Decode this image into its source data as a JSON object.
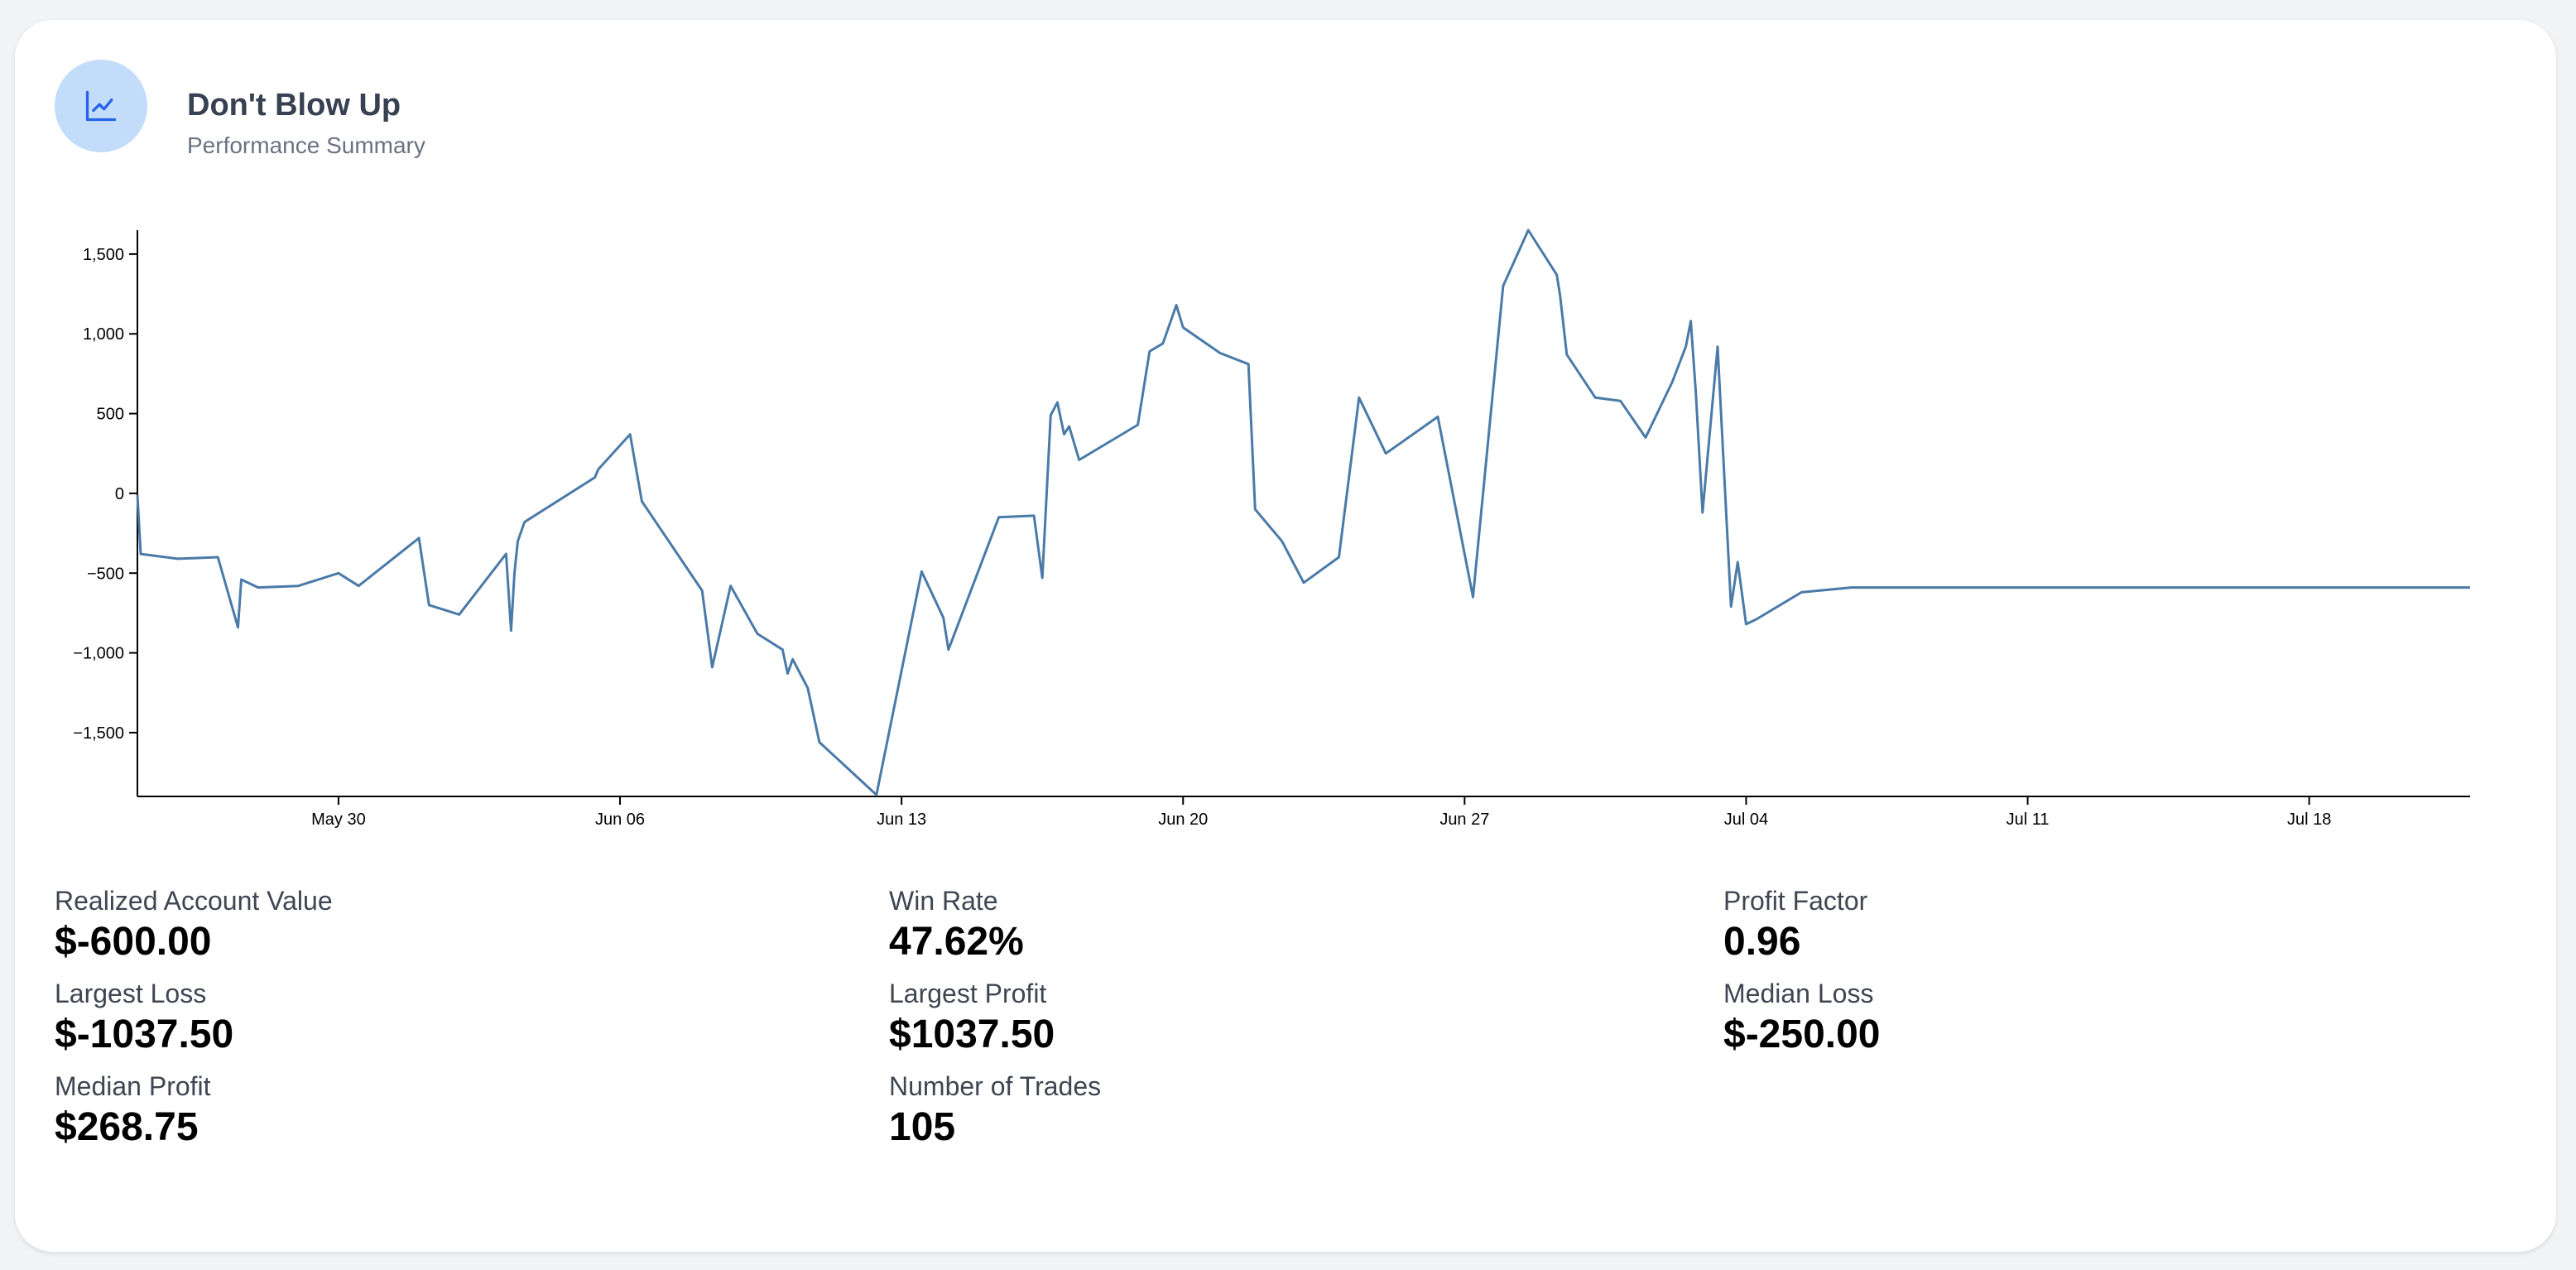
{
  "header": {
    "title": "Don't Blow Up",
    "subtitle": "Performance Summary",
    "icon": "line-chart-icon"
  },
  "colors": {
    "line": "#4a7aa8",
    "icon_bg": "#c3dcfa",
    "icon_fg": "#2563eb"
  },
  "chart_data": {
    "type": "line",
    "title": "",
    "xlabel": "",
    "ylabel": "",
    "ylim": [
      -1900,
      1650
    ],
    "xlim": [
      "2023-05-25",
      "2023-07-22"
    ],
    "yticks": [
      -1500,
      -1000,
      -500,
      0,
      500,
      1000,
      1500
    ],
    "ytick_labels": [
      "−1,500",
      "−1,000",
      "−500",
      "0",
      "500",
      "1,000",
      "1,500"
    ],
    "xticks": [
      "2023-05-30",
      "2023-06-06",
      "2023-06-13",
      "2023-06-20",
      "2023-06-27",
      "2023-07-04",
      "2023-07-11",
      "2023-07-18"
    ],
    "xtick_labels": [
      "May 30",
      "Jun 06",
      "Jun 13",
      "Jun 20",
      "Jun 27",
      "Jul 04",
      "Jul 11",
      "Jul 18"
    ],
    "grid": false,
    "series": [
      {
        "x": [
          "2023-05-25 00:00",
          "2023-05-25 02:00",
          "2023-05-26 00:00",
          "2023-05-27 00:00",
          "2023-05-27 12:00",
          "2023-05-27 14:00",
          "2023-05-28 00:00",
          "2023-05-29 00:00",
          "2023-05-30 00:00",
          "2023-05-30 12:00",
          "2023-06-01 00:00",
          "2023-06-01 06:00",
          "2023-06-02 00:00",
          "2023-06-03 04:00",
          "2023-06-03 07:00",
          "2023-06-03 09:00",
          "2023-06-03 11:00",
          "2023-06-03 15:00",
          "2023-06-05 09:00",
          "2023-06-05 11:00",
          "2023-06-06 06:00",
          "2023-06-06 13:00",
          "2023-06-08 01:00",
          "2023-06-08 07:00",
          "2023-06-08 18:00",
          "2023-06-09 10:00",
          "2023-06-10 01:00",
          "2023-06-10 04:00",
          "2023-06-10 07:00",
          "2023-06-10 16:00",
          "2023-06-10 23:00",
          "2023-06-12 09:00",
          "2023-06-13 12:00",
          "2023-06-14 01:00",
          "2023-06-14 04:00",
          "2023-06-15 10:00",
          "2023-06-16 07:00",
          "2023-06-16 12:00",
          "2023-06-16 17:00",
          "2023-06-16 21:00",
          "2023-06-17 01:00",
          "2023-06-17 04:00",
          "2023-06-17 10:00",
          "2023-06-18 21:00",
          "2023-06-19 04:00",
          "2023-06-19 12:00",
          "2023-06-19 20:00",
          "2023-06-20 00:00",
          "2023-06-20 22:00",
          "2023-06-21 15:00",
          "2023-06-21 19:00",
          "2023-06-22 11:00",
          "2023-06-23 00:00",
          "2023-06-23 21:00",
          "2023-06-24 09:00",
          "2023-06-25 01:00",
          "2023-06-26 08:00",
          "2023-06-27 05:00",
          "2023-06-27 23:00",
          "2023-06-28 14:00",
          "2023-06-29 07:00",
          "2023-06-29 09:00",
          "2023-06-29 13:00",
          "2023-06-30 06:00",
          "2023-06-30 21:00",
          "2023-07-01 12:00",
          "2023-07-02 04:00",
          "2023-07-02 12:00",
          "2023-07-02 15:00",
          "2023-07-02 18:00",
          "2023-07-02 22:00",
          "2023-07-03 07:00",
          "2023-07-03 15:00",
          "2023-07-03 19:00",
          "2023-07-04 00:00",
          "2023-07-04 06:00",
          "2023-07-05 09:00",
          "2023-07-06 15:00",
          "2023-07-07 11:00",
          "2023-07-08 14:00",
          "2023-07-09 12:00",
          "2023-07-10 08:00",
          "2023-07-12 14:00",
          "2023-07-12 16:00",
          "2023-07-13 07:00",
          "2023-07-14 02:00",
          "2023-07-14 07:00",
          "2023-07-14 12:00",
          "2023-07-14 19:00",
          "2023-07-15 08:00",
          "2023-07-15 22:00",
          "2023-07-16 07:00",
          "2023-07-17 02:00",
          "2023-07-17 05:00",
          "2023-07-19 16:00",
          "2023-07-20 04:00",
          "2023-07-20 09:00",
          "2023-07-21 01:00",
          "2023-07-22 00:00"
        ],
        "y": [
          -10,
          -380,
          -410,
          -400,
          -840,
          -540,
          -590,
          -580,
          -500,
          -580,
          -280,
          -700,
          -760,
          -380,
          -860,
          -500,
          -300,
          -180,
          100,
          150,
          370,
          -50,
          -610,
          -1090,
          -580,
          -880,
          -980,
          -1130,
          -1040,
          -1220,
          -1560,
          -1890,
          -490,
          -780,
          -980,
          -150,
          -140,
          -530,
          490,
          570,
          370,
          420,
          210,
          430,
          890,
          940,
          1180,
          1040,
          880,
          810,
          -100,
          -300,
          -560,
          -400,
          600,
          250,
          480,
          -650,
          1300,
          1650,
          1370,
          1240,
          870,
          600,
          580,
          350,
          700,
          920,
          1080,
          630,
          -120,
          920,
          -710,
          -430,
          -820,
          -790,
          -620,
          -590,
          -590,
          -590,
          -590,
          -590,
          -590,
          -590,
          -590,
          -590,
          -590,
          -590,
          -590,
          -590,
          -590,
          -590,
          -590,
          -590,
          -590,
          -590,
          -590,
          -590,
          -590
        ]
      }
    ]
  },
  "stats": [
    {
      "label": "Realized Account Value",
      "value": "$-600.00"
    },
    {
      "label": "Win Rate",
      "value": "47.62%"
    },
    {
      "label": "Profit Factor",
      "value": "0.96"
    },
    {
      "label": "Largest Loss",
      "value": "$-1037.50"
    },
    {
      "label": "Largest Profit",
      "value": "$1037.50"
    },
    {
      "label": "Median Loss",
      "value": "$-250.00"
    },
    {
      "label": "Median Profit",
      "value": "$268.75"
    },
    {
      "label": "Number of Trades",
      "value": "105"
    }
  ]
}
